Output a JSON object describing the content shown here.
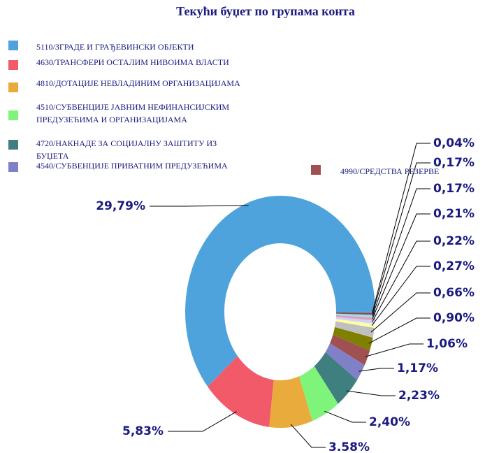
{
  "chart_data": {
    "type": "donut",
    "title": "Текући буџет по групама конта",
    "categories": [
      "5110/ЗГРАДЕ И ГРАЂЕВИНСКИ ОБЈЕКТИ",
      "4630/ТРАНСФЕРИ ОСТАЛИМ НИВОИМА ВЛАСТИ",
      "4810/ДОТАЦИЈЕ НЕВЛАДИНИМ ОРГАНИЗАЦИЈАМА",
      "4510/СУБВЕНЦИЈЕ ЈАВНИМ НЕФИНАНСИЈСКИМ ПРЕДУЗЕЋИМА И ОРГАНИЗАЦИЈАМА",
      "4720/НАКНАДЕ ЗА СОЦИЈАЛНУ ЗАШТИТУ ИЗ БУЏЕТА",
      "4540/СУБВЕНЦИЈЕ ПРИВАТНИМ ПРЕДУЗЕЋИМА",
      "4990/СРЕДСТВА РЕЗЕРВЕ",
      null,
      null,
      null,
      null,
      null,
      null,
      null,
      null
    ],
    "values": [
      29.79,
      5.83,
      3.58,
      2.4,
      2.23,
      1.17,
      1.06,
      0.9,
      0.66,
      0.27,
      0.22,
      0.21,
      0.17,
      0.17,
      0.04
    ],
    "value_labels": [
      "29,79%",
      "5,83%",
      "3.58%",
      "2,40%",
      "2,23%",
      "1,17%",
      "1,06%",
      "0,90%",
      "0,66%",
      "0,27%",
      "0,22%",
      "0,21%",
      "0,17%",
      "0,17%",
      "0,04%"
    ],
    "colors": [
      "#4fa3dc",
      "#f25a6a",
      "#e9ab3c",
      "#7ef57a",
      "#3f7f7f",
      "#8080c8",
      "#a05050",
      "#808000",
      "#c0c0c0",
      "#ffffa0",
      "#d0d0ff",
      "#e0a0c0",
      "#a0e0e0",
      "#606060",
      "#ff80ff"
    ]
  }
}
